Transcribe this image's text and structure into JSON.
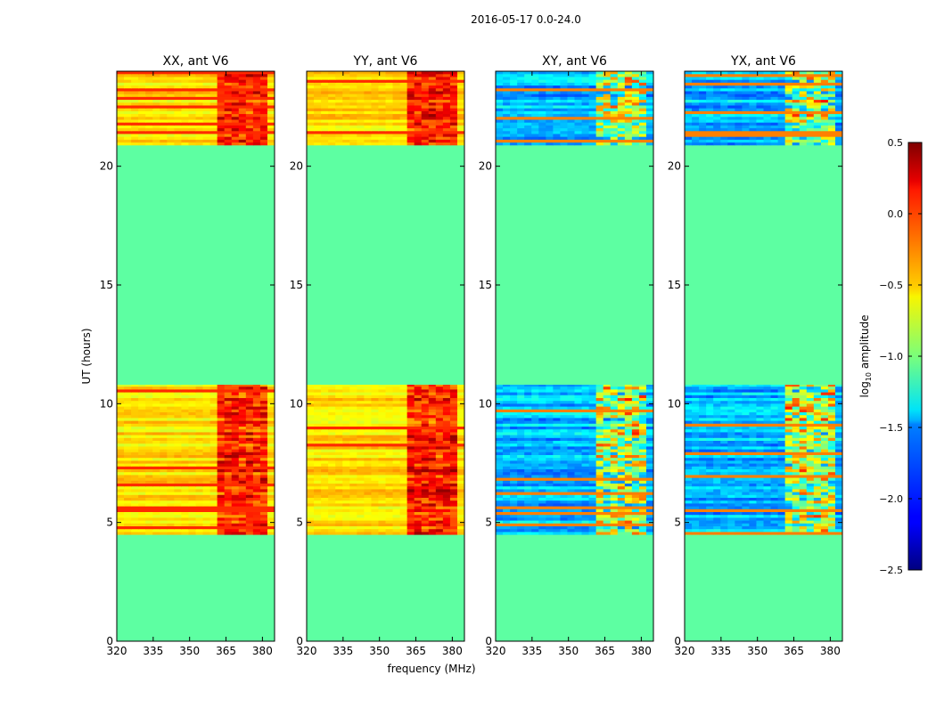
{
  "chart_data": {
    "type": "heatmap",
    "title": "2016-05-17 0.0-24.0",
    "ylabel": "UT (hours)",
    "xlabel": "frequency (MHz)",
    "xlim": [
      320,
      385
    ],
    "ylim": [
      0,
      24
    ],
    "x_ticks": [
      320,
      335,
      350,
      365,
      380
    ],
    "y_ticks": [
      0,
      5,
      10,
      15,
      20
    ],
    "panels": [
      {
        "id": "XX",
        "title": "XX, ant V6",
        "kind": "parallel"
      },
      {
        "id": "YY",
        "title": "YY, ant V6",
        "kind": "parallel"
      },
      {
        "id": "XY",
        "title": "XY, ant V6",
        "kind": "cross"
      },
      {
        "id": "YX",
        "title": "YX, ant V6",
        "kind": "cross"
      }
    ],
    "data_blocks_ut_hours": [
      [
        4.5,
        10.8
      ],
      [
        20.9,
        24.0
      ]
    ],
    "empty_fill_log10_amplitude": -1.1,
    "colorbar": {
      "label": "log10 amplitude",
      "label_main": "log",
      "label_sub": "10",
      "label_rest": " amplitude",
      "range": [
        -2.5,
        0.5
      ],
      "ticks": [
        0.5,
        0.0,
        -0.5,
        -1.0,
        -1.5,
        -2.0,
        -2.5
      ],
      "tick_labels": [
        "0.5",
        "0.0",
        "−0.5",
        "−1.0",
        "−1.5",
        "−2.0",
        "−2.5"
      ],
      "colormap": "jet"
    }
  }
}
